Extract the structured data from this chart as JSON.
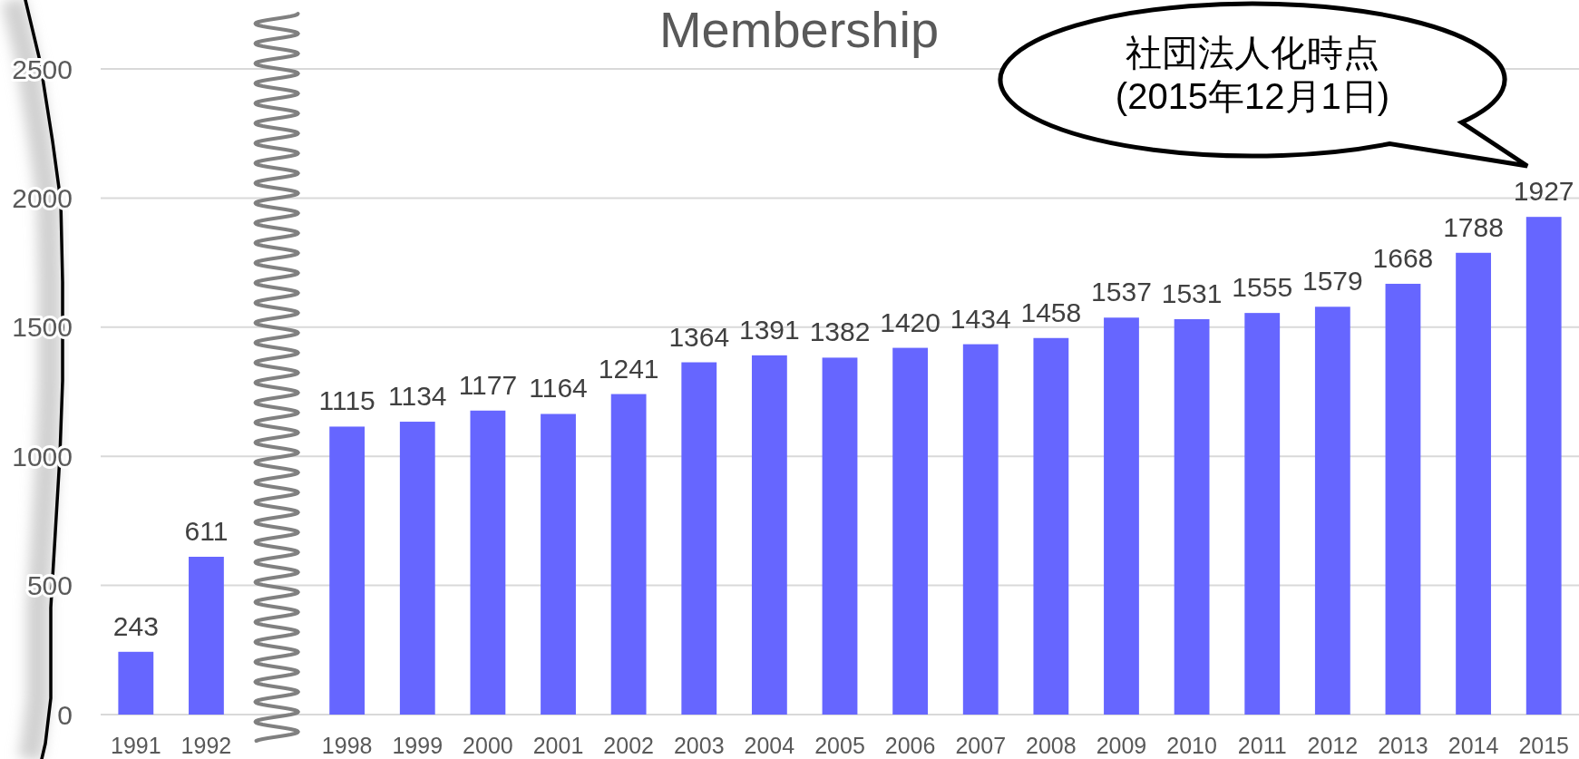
{
  "chart_data": {
    "type": "bar",
    "title": "Membership",
    "categories": [
      "1991",
      "1992",
      null,
      "1998",
      "1999",
      "2000",
      "2001",
      "2002",
      "2003",
      "2004",
      "2005",
      "2006",
      "2007",
      "2008",
      "2009",
      "2010",
      "2011",
      "2012",
      "2013",
      "2014",
      "2015"
    ],
    "values": [
      243,
      611,
      null,
      1115,
      1134,
      1177,
      1164,
      1241,
      1364,
      1391,
      1382,
      1420,
      1434,
      1458,
      1537,
      1531,
      1555,
      1579,
      1668,
      1788,
      1927
    ],
    "color": "#6666ff",
    "ylim": [
      0,
      2500
    ],
    "yticks": [
      0,
      500,
      1000,
      1500,
      2000,
      2500
    ],
    "grid": "y",
    "data_labels": true,
    "annotations": [
      "社団法人化時点\n(2015年12月1日)"
    ]
  }
}
